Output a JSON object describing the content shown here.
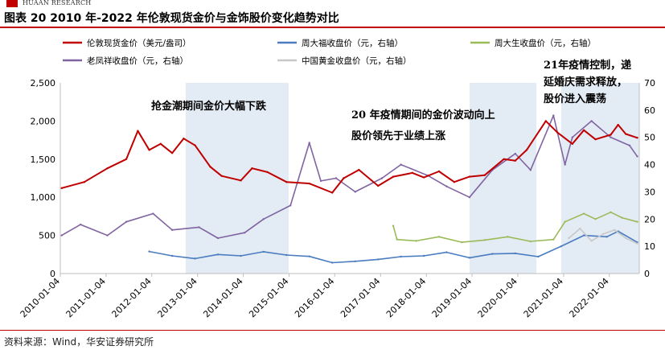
{
  "header": {
    "org_name": "HUAAN RESEARCH",
    "brand_color": "#c00000"
  },
  "figure": {
    "title": "图表 20 2010 年-2022 年伦敦现货金价与金饰股价变化趋势对比",
    "source": "资料来源：Wind，华安证券研究所"
  },
  "chart_data": {
    "type": "line",
    "x_ticks": [
      "2010-01-04",
      "2011-01-04",
      "2012-01-04",
      "2013-01-04",
      "2014-01-04",
      "2015-01-04",
      "2016-01-04",
      "2017-01-04",
      "2018-01-04",
      "2019-01-04",
      "2020-01-04",
      "2021-01-04",
      "2022-01-04"
    ],
    "x_range": [
      "2010-01-04",
      "2022-08-31"
    ],
    "y_left": {
      "range": [
        0,
        2500
      ],
      "ticks": [
        0,
        500,
        1000,
        1500,
        2000,
        2500
      ],
      "tick_labels": [
        "0",
        "500",
        "1,000",
        "1,500",
        "2,000",
        "2,500"
      ]
    },
    "y_right": {
      "range": [
        0,
        70
      ],
      "ticks": [
        0,
        10,
        20,
        30,
        40,
        50,
        60,
        70
      ],
      "tick_labels": [
        "0",
        "10",
        "20",
        "30",
        "40",
        "50",
        "60",
        "70"
      ]
    },
    "grid": false,
    "shaded_periods": [
      [
        "2012-10-01",
        "2015-01-01"
      ],
      [
        "2018-12-15",
        "2020-06-01"
      ],
      [
        "2020-12-15",
        "2022-08-31"
      ]
    ],
    "legend_position": "top",
    "series": [
      {
        "name": "伦敦现货金价（美元/盎司）",
        "axis": "left",
        "color": "#c00000",
        "x": [
          "2010-01",
          "2010-07",
          "2011-01",
          "2011-06",
          "2011-09",
          "2011-12",
          "2012-03",
          "2012-06",
          "2012-09",
          "2012-12",
          "2013-04",
          "2013-07",
          "2013-12",
          "2014-03",
          "2014-07",
          "2014-12",
          "2015-06",
          "2015-12",
          "2016-03",
          "2016-07",
          "2016-12",
          "2017-04",
          "2017-09",
          "2017-12",
          "2018-04",
          "2018-08",
          "2018-12",
          "2019-04",
          "2019-09",
          "2019-12",
          "2020-03",
          "2020-08",
          "2020-11",
          "2021-03",
          "2021-06",
          "2021-09",
          "2022-01",
          "2022-03",
          "2022-05",
          "2022-08"
        ],
        "values": [
          1120,
          1200,
          1380,
          1500,
          1870,
          1620,
          1700,
          1580,
          1770,
          1680,
          1400,
          1280,
          1220,
          1380,
          1330,
          1200,
          1180,
          1060,
          1250,
          1360,
          1150,
          1270,
          1320,
          1260,
          1340,
          1200,
          1270,
          1290,
          1500,
          1480,
          1620,
          2000,
          1850,
          1700,
          1880,
          1760,
          1820,
          1950,
          1830,
          1780
        ]
      },
      {
        "name": "周大福收盘价（元，右轴）",
        "axis": "right",
        "color": "#4a7cc0",
        "x": [
          "2011-12",
          "2012-06",
          "2012-12",
          "2013-06",
          "2013-12",
          "2014-06",
          "2014-12",
          "2015-06",
          "2015-12",
          "2016-06",
          "2016-12",
          "2017-06",
          "2017-12",
          "2018-06",
          "2018-12",
          "2019-06",
          "2019-12",
          "2020-06",
          "2020-12",
          "2021-06",
          "2021-12",
          "2022-03",
          "2022-08"
        ],
        "values": [
          8.1,
          6.5,
          5.5,
          7.0,
          6.5,
          8.0,
          6.8,
          6.3,
          4.0,
          4.5,
          5.2,
          6.2,
          6.5,
          7.8,
          5.8,
          7.2,
          7.4,
          6.2,
          10.0,
          14.0,
          13.5,
          15.5,
          11.5
        ]
      },
      {
        "name": "周大生收盘价（元，右轴）",
        "axis": "right",
        "color": "#9bbb59",
        "x": [
          "2017-04",
          "2017-05",
          "2017-10",
          "2018-04",
          "2018-10",
          "2019-04",
          "2019-10",
          "2020-04",
          "2020-10",
          "2021-01",
          "2021-06",
          "2021-09",
          "2022-01",
          "2022-04",
          "2022-08"
        ],
        "values": [
          17.5,
          12.5,
          12.0,
          13.5,
          11.5,
          12.3,
          13.5,
          11.8,
          12.5,
          19.0,
          22.0,
          20.0,
          22.5,
          20.5,
          19.0
        ]
      },
      {
        "name": "老凤祥收盘价（元，右轴）",
        "axis": "right",
        "color": "#8064a2",
        "x": [
          "2010-01",
          "2010-06",
          "2011-01",
          "2011-06",
          "2012-01",
          "2012-06",
          "2013-01",
          "2013-06",
          "2014-01",
          "2014-06",
          "2015-01",
          "2015-06",
          "2015-09",
          "2016-01",
          "2016-06",
          "2017-01",
          "2017-06",
          "2018-01",
          "2018-06",
          "2018-12",
          "2019-06",
          "2019-12",
          "2020-04",
          "2020-10",
          "2021-01",
          "2021-03",
          "2021-08",
          "2022-01",
          "2022-06",
          "2022-08"
        ],
        "values": [
          14,
          18,
          14,
          19,
          22,
          16,
          17,
          13,
          15,
          20,
          25,
          48,
          34,
          35,
          30,
          35,
          40,
          36,
          32,
          28,
          38,
          44,
          38,
          58,
          40,
          50,
          56,
          50,
          47,
          43
        ]
      },
      {
        "name": "中国黄金收盘价（元，右轴）",
        "axis": "right",
        "color": "#c8c8c8",
        "x": [
          "2021-02",
          "2021-05",
          "2021-08",
          "2021-11",
          "2022-02",
          "2022-05",
          "2022-08"
        ],
        "values": [
          13.0,
          16.5,
          12.0,
          14.5,
          16.0,
          13.0,
          11.0
        ]
      }
    ],
    "annotations": [
      {
        "text": "抢金潮期间金价大幅下跌"
      },
      {
        "text": "20 年疫情期间的金价波动向上"
      },
      {
        "text": "股价领先于业绩上涨"
      },
      {
        "text": "21年疫情控制，递"
      },
      {
        "text": "延婚庆需求释放，"
      },
      {
        "text": "股价进入震荡"
      }
    ]
  }
}
